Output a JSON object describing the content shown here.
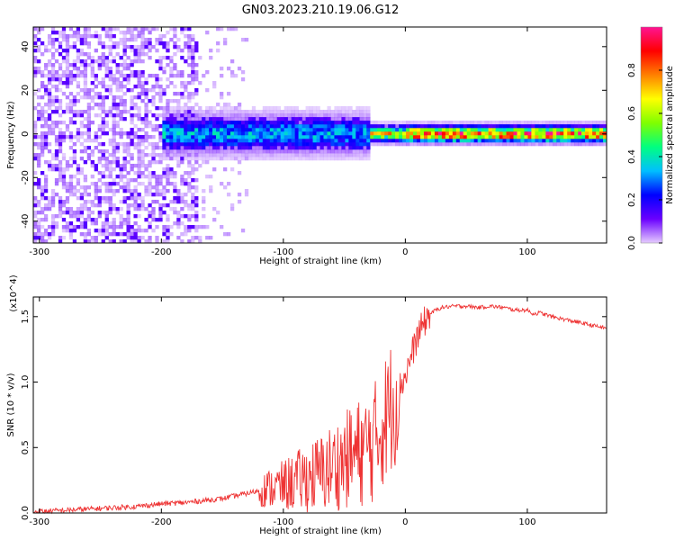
{
  "title": "GN03.2023.210.19.06.G12",
  "chart_data": [
    {
      "type": "heatmap",
      "xlabel": "Height of straight line (km)",
      "ylabel": "Frequency (Hz)",
      "xlim": [
        -305,
        165
      ],
      "ylim": [
        -50,
        49
      ],
      "xticks": [
        -300,
        -200,
        -100,
        0,
        100
      ],
      "yticks": [
        -40,
        -20,
        0,
        20,
        40
      ],
      "colorbar": {
        "label": "Normalized spectral amplitude",
        "range": [
          0,
          1
        ],
        "ticks": [
          "0.0",
          "0.2",
          "0.4",
          "0.6",
          "0.8"
        ],
        "colors": [
          "#e6ccff",
          "#6a00ff",
          "#0000ff",
          "#00bfff",
          "#00ff80",
          "#7fff00",
          "#ffff00",
          "#ff8000",
          "#ff0000",
          "#ff1493"
        ]
      },
      "ridge": {
        "center_freq": 0,
        "segments": [
          {
            "x_from": -200,
            "x_to": -30,
            "peak_amplitude": 0.35,
            "halfwidth": 7
          },
          {
            "x_from": -30,
            "x_to": 0,
            "peak_amplitude": 0.7,
            "halfwidth": 3
          },
          {
            "x_from": 0,
            "x_to": 165,
            "peak_amplitude": 0.9,
            "halfwidth": 3
          }
        ]
      }
    },
    {
      "type": "line",
      "xlabel": "Height of straight line (km)",
      "ylabel": "SNR (10 * v/v)",
      "y_multiplier": "(x10^4)",
      "xlim": [
        -305,
        165
      ],
      "ylim": [
        0,
        1.65
      ],
      "xticks": [
        -300,
        -200,
        -100,
        0,
        100
      ],
      "yticks": [
        "0.0",
        "0.5",
        "1.0",
        "1.5"
      ],
      "color": "#ee3333",
      "x": [
        -305,
        -280,
        -260,
        -240,
        -220,
        -200,
        -180,
        -160,
        -150,
        -140,
        -130,
        -120,
        -110,
        -100,
        -90,
        -80,
        -70,
        -60,
        -50,
        -40,
        -30,
        -25,
        -20,
        -15,
        -10,
        -5,
        0,
        5,
        10,
        15,
        20,
        25,
        30,
        40,
        50,
        60,
        70,
        80,
        90,
        100,
        105,
        110,
        120,
        130,
        140,
        150,
        165
      ],
      "y": [
        0.01,
        0.02,
        0.03,
        0.04,
        0.05,
        0.07,
        0.08,
        0.1,
        0.11,
        0.13,
        0.15,
        0.17,
        0.19,
        0.21,
        0.24,
        0.27,
        0.3,
        0.35,
        0.4,
        0.45,
        0.5,
        0.55,
        0.65,
        0.75,
        0.85,
        0.95,
        1.05,
        1.2,
        1.35,
        1.45,
        1.52,
        1.55,
        1.57,
        1.58,
        1.58,
        1.57,
        1.58,
        1.57,
        1.55,
        1.55,
        1.52,
        1.53,
        1.5,
        1.48,
        1.46,
        1.44,
        1.41
      ]
    }
  ]
}
